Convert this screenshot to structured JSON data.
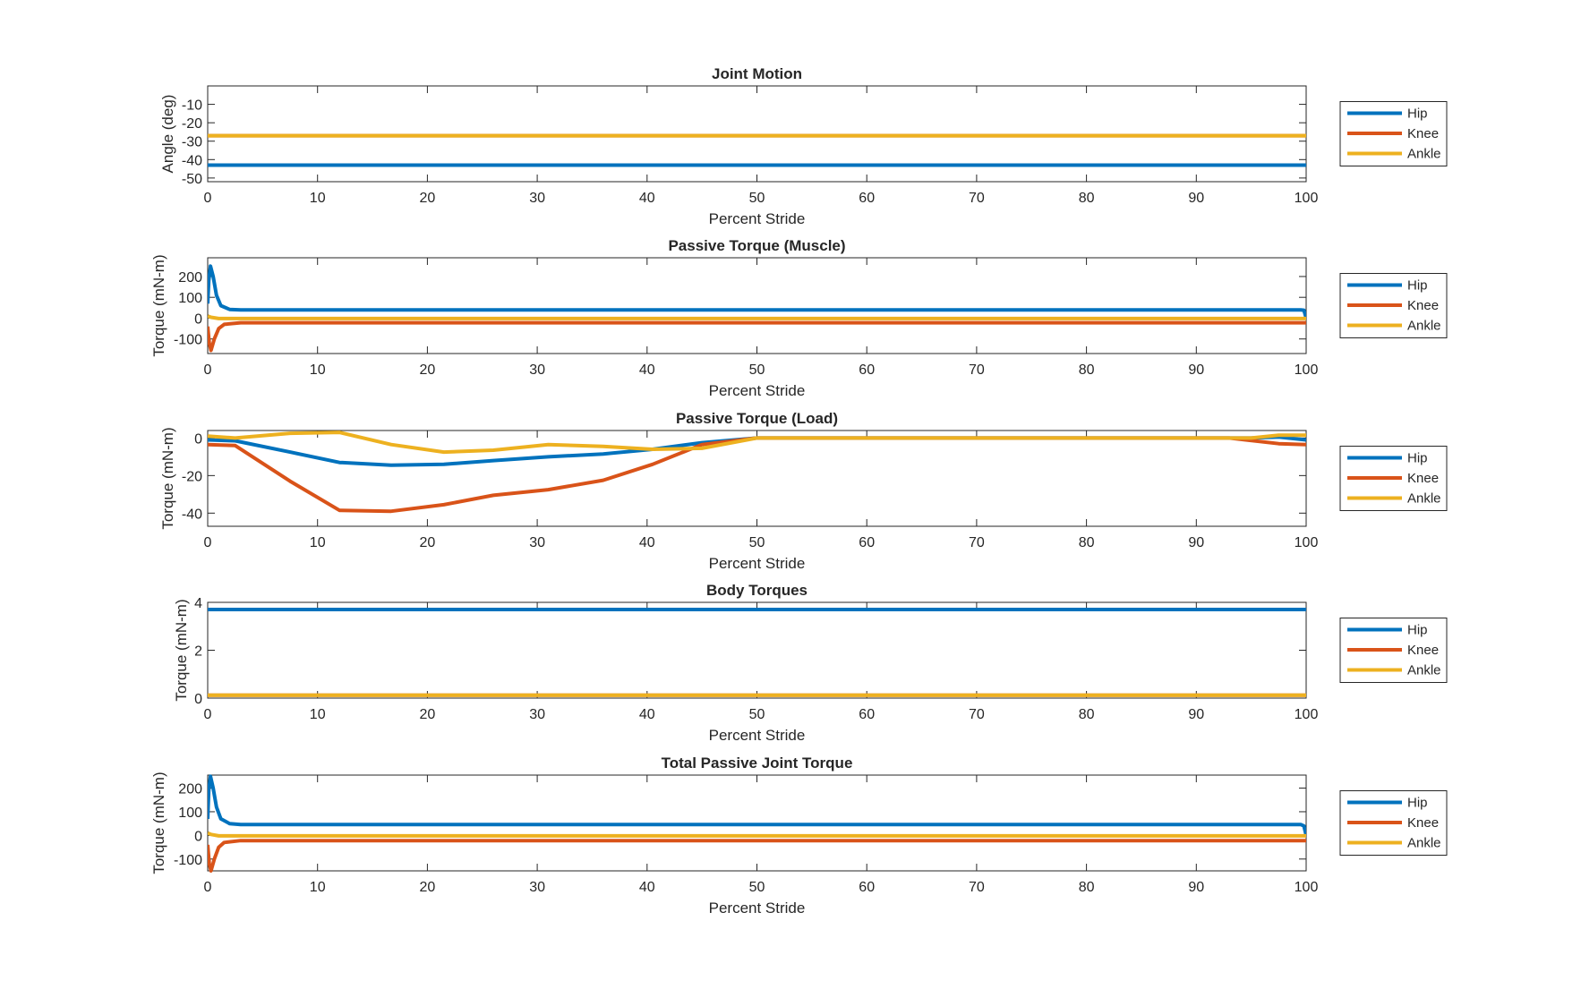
{
  "chart_data": [
    {
      "type": "line",
      "title": "Joint Motion",
      "xlabel": "Percent Stride",
      "ylabel": "Angle (deg)",
      "xlim": [
        0,
        100
      ],
      "ylim": [
        -52,
        0
      ],
      "xticks": [
        0,
        10,
        20,
        30,
        40,
        50,
        60,
        70,
        80,
        90,
        100
      ],
      "yticks": [
        -50,
        -40,
        -30,
        -20,
        -10
      ],
      "grid": false,
      "legend": "right",
      "series": [
        {
          "name": "Hip",
          "color": "#0072BD",
          "x": [
            0,
            100
          ],
          "y": [
            -43,
            -43
          ]
        },
        {
          "name": "Knee",
          "color": "#D95319",
          "x": [
            0,
            100
          ],
          "y": [
            -27,
            -27
          ]
        },
        {
          "name": "Ankle",
          "color": "#EDB120",
          "x": [
            0,
            100
          ],
          "y": [
            -27,
            -27
          ]
        }
      ]
    },
    {
      "type": "line",
      "title": "Passive Torque (Muscle)",
      "xlabel": "Percent Stride",
      "ylabel": "Torque (mN-m)",
      "xlim": [
        0,
        100
      ],
      "ylim": [
        -170,
        290
      ],
      "xticks": [
        0,
        10,
        20,
        30,
        40,
        50,
        60,
        70,
        80,
        90,
        100
      ],
      "yticks": [
        -100,
        0,
        100,
        200
      ],
      "grid": false,
      "legend": "right",
      "series": [
        {
          "name": "Hip",
          "color": "#0072BD",
          "x": [
            0,
            0.1,
            0.25,
            0.5,
            0.8,
            1.2,
            2,
            3,
            99.5,
            99.8,
            100
          ],
          "y": [
            70,
            180,
            250,
            200,
            110,
            60,
            42,
            40,
            40,
            38,
            0
          ]
        },
        {
          "name": "Knee",
          "color": "#D95319",
          "x": [
            0,
            0.15,
            0.3,
            0.6,
            1.0,
            1.5,
            3,
            100
          ],
          "y": [
            -40,
            -120,
            -155,
            -100,
            -50,
            -30,
            -22,
            -22
          ]
        },
        {
          "name": "Ankle",
          "color": "#EDB120",
          "x": [
            0,
            0.3,
            1,
            100
          ],
          "y": [
            10,
            4,
            -2,
            -2
          ]
        }
      ]
    },
    {
      "type": "line",
      "title": "Passive Torque (Load)",
      "xlabel": "Percent Stride",
      "ylabel": "Torque (mN-m)",
      "xlim": [
        0,
        100
      ],
      "ylim": [
        -47,
        4
      ],
      "xticks": [
        0,
        10,
        20,
        30,
        40,
        50,
        60,
        70,
        80,
        90,
        100
      ],
      "yticks": [
        -40,
        -20,
        0
      ],
      "grid": false,
      "legend": "right",
      "series": [
        {
          "name": "Hip",
          "color": "#0072BD",
          "x": [
            0,
            2.5,
            7.5,
            12,
            16.7,
            21.5,
            26,
            31,
            36,
            40.5,
            45,
            50,
            55,
            60,
            70,
            80,
            90,
            95,
            97.5,
            100
          ],
          "y": [
            -1,
            -1.5,
            -7.5,
            -13,
            -14.5,
            -14,
            -12,
            -10,
            -8.5,
            -6,
            -2.5,
            0,
            0,
            0,
            0,
            0,
            0,
            0,
            0.5,
            -1
          ]
        },
        {
          "name": "Knee",
          "color": "#D95319",
          "x": [
            0,
            2.5,
            7.5,
            12,
            16.7,
            21.5,
            26,
            31,
            36,
            40.5,
            45,
            50,
            55,
            60,
            70,
            80,
            90,
            93,
            97.5,
            100
          ],
          "y": [
            -3.5,
            -4,
            -23,
            -38.5,
            -39,
            -35.5,
            -30.5,
            -27.5,
            -22.5,
            -14,
            -3.5,
            0,
            0,
            0,
            0,
            0,
            0,
            0,
            -3,
            -3.5
          ]
        },
        {
          "name": "Ankle",
          "color": "#EDB120",
          "x": [
            0,
            2.5,
            7.5,
            12,
            16.7,
            21.5,
            26,
            31,
            36,
            40.5,
            45,
            50,
            55,
            60,
            70,
            80,
            90,
            95,
            97.5,
            100
          ],
          "y": [
            1,
            0,
            2.5,
            3,
            -3.5,
            -7.5,
            -6.5,
            -3.5,
            -4.5,
            -6,
            -5.5,
            0,
            0,
            0,
            0,
            0,
            0,
            0,
            1.5,
            1.5
          ]
        }
      ]
    },
    {
      "type": "line",
      "title": "Body Torques",
      "xlabel": "Percent Stride",
      "ylabel": "Torque (mN-m)",
      "xlim": [
        0,
        100
      ],
      "ylim": [
        0,
        4
      ],
      "xticks": [
        0,
        10,
        20,
        30,
        40,
        50,
        60,
        70,
        80,
        90,
        100
      ],
      "yticks": [
        0,
        2,
        4
      ],
      "grid": false,
      "legend": "right",
      "series": [
        {
          "name": "Hip",
          "color": "#0072BD",
          "x": [
            0,
            100
          ],
          "y": [
            3.7,
            3.7
          ]
        },
        {
          "name": "Knee",
          "color": "#D95319",
          "x": [
            0,
            100
          ],
          "y": [
            0.12,
            0.12
          ]
        },
        {
          "name": "Ankle",
          "color": "#EDB120",
          "x": [
            0,
            100
          ],
          "y": [
            0.12,
            0.12
          ]
        }
      ]
    },
    {
      "type": "line",
      "title": "Total Passive Joint Torque",
      "xlabel": "Percent Stride",
      "ylabel": "Torque (mN-m)",
      "xlim": [
        0,
        100
      ],
      "ylim": [
        -150,
        255
      ],
      "xticks": [
        0,
        10,
        20,
        30,
        40,
        50,
        60,
        70,
        80,
        90,
        100
      ],
      "yticks": [
        -100,
        0,
        100,
        200
      ],
      "grid": false,
      "legend": "right",
      "series": [
        {
          "name": "Hip",
          "color": "#0072BD",
          "x": [
            0,
            0.1,
            0.25,
            0.5,
            0.8,
            1.2,
            2,
            3,
            99.5,
            99.8,
            100
          ],
          "y": [
            70,
            190,
            250,
            200,
            120,
            70,
            50,
            46,
            46,
            40,
            0
          ]
        },
        {
          "name": "Knee",
          "color": "#D95319",
          "x": [
            0,
            0.15,
            0.3,
            0.6,
            1.0,
            1.5,
            3,
            100
          ],
          "y": [
            -40,
            -120,
            -150,
            -100,
            -50,
            -30,
            -22,
            -22
          ]
        },
        {
          "name": "Ankle",
          "color": "#EDB120",
          "x": [
            0,
            0.3,
            1,
            100
          ],
          "y": [
            10,
            4,
            -2,
            -2
          ]
        }
      ]
    }
  ]
}
